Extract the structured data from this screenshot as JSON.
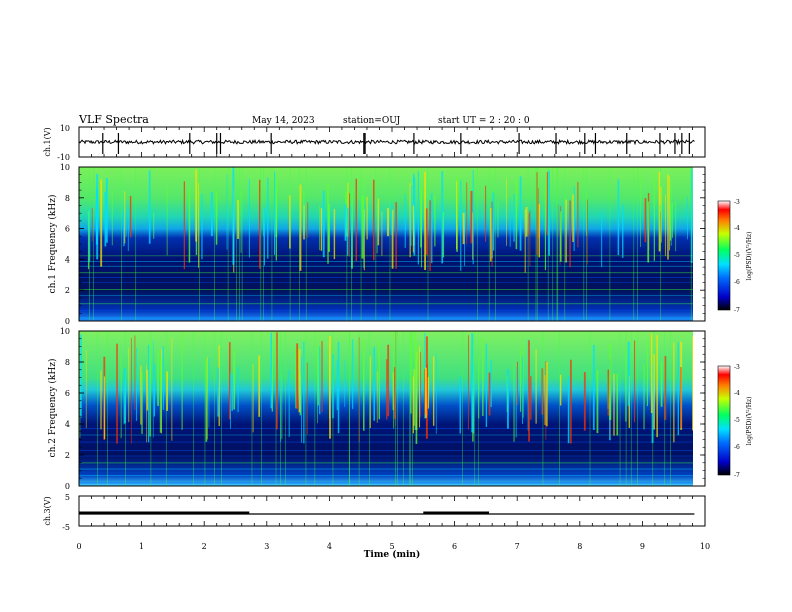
{
  "header": {
    "title": "VLF Spectra",
    "date": "May 14, 2023",
    "station": "station=OUJ",
    "start": "start  UT =   2 : 20 : 0"
  },
  "chart_data": [
    {
      "type": "line",
      "panel": "ch1-waveform",
      "ylabel": "ch.1(V)",
      "ylim": [
        -10,
        10
      ],
      "ytick_labels": [
        "10",
        "-10"
      ],
      "xlim": [
        0,
        10
      ],
      "baseline": 0,
      "spikes_min": [
        0.38,
        0.63,
        1.77,
        2.2,
        2.26,
        3.07,
        4.55,
        4.57,
        5.35,
        6.1,
        7.03,
        7.62,
        8.08,
        8.25,
        8.75,
        9.28,
        9.52,
        9.63,
        9.75
      ]
    },
    {
      "type": "heatmap",
      "panel": "ch1-spectrogram",
      "ylabel": "ch.1 Frequency (kHz)",
      "ylim": [
        0,
        10
      ],
      "yticks": [
        0,
        2,
        4,
        6,
        8,
        10
      ],
      "xlim": [
        0,
        10
      ],
      "colorbar": {
        "label": "log(PSD)(V²/Hz)",
        "range": [
          -7,
          -3
        ],
        "ticks": [
          "-3",
          "-4",
          "-5",
          "-6",
          "-7"
        ]
      },
      "noise_floor_kHz": 5.6
    },
    {
      "type": "heatmap",
      "panel": "ch2-spectrogram",
      "ylabel": "ch.2 Frequency (kHz)",
      "ylim": [
        0,
        10
      ],
      "yticks": [
        0,
        2,
        4,
        6,
        8,
        10
      ],
      "xlim": [
        0,
        10
      ],
      "colorbar": {
        "label": "log(PSD)(V²/Hz)",
        "range": [
          -7,
          -3
        ],
        "ticks": [
          "-3",
          "-4",
          "-5",
          "-6",
          "-7"
        ]
      },
      "noise_floor_kHz": 5.2
    },
    {
      "type": "line",
      "panel": "ch3-waveform",
      "ylabel": "ch.3(V)",
      "ylim": [
        -5,
        5
      ],
      "ytick_labels": [
        "5",
        "-5"
      ],
      "xlim": [
        0,
        10
      ],
      "xlabel": "Time  (min)",
      "xticks": [
        0,
        1,
        2,
        3,
        4,
        5,
        6,
        7,
        8,
        9,
        10
      ],
      "level": -1,
      "thick_segments": [
        [
          0.0,
          2.72
        ],
        [
          5.5,
          6.55
        ]
      ]
    }
  ],
  "colors": {
    "deep": "#00003a",
    "blue": "#0018c8",
    "cyan": "#00d8ff",
    "green": "#3cff3c",
    "yellow": "#ffff00",
    "red": "#ff0000"
  }
}
